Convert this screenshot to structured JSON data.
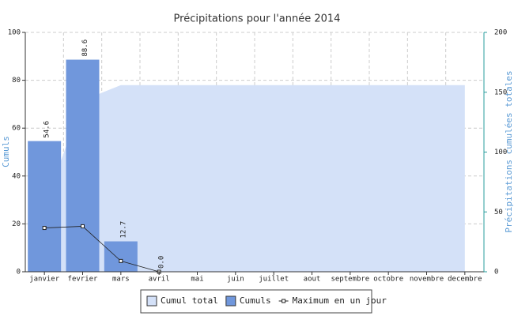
{
  "chart_data": {
    "type": "bar-line-area",
    "title": "Précipitations pour l'année 2014",
    "ylabel": "Cumuls",
    "y2label": "Précipitations cumulées totales",
    "categories": [
      "janvier",
      "fevrier",
      "mars",
      "avril",
      "mai",
      "juin",
      "juillet",
      "aout",
      "septembre",
      "octobre",
      "novembre",
      "decembre"
    ],
    "ylim": [
      0,
      100
    ],
    "yticks": [
      0,
      20,
      40,
      60,
      80,
      100
    ],
    "y2lim": [
      0,
      200
    ],
    "y2ticks": [
      0,
      50,
      100,
      150,
      200
    ],
    "grid": true,
    "series": [
      {
        "name": "Cumul total",
        "kind": "area",
        "axis": "y2",
        "color": "#d4e1f8",
        "values": [
          54.6,
          143.2,
          155.9,
          155.9,
          155.9,
          155.9,
          155.9,
          155.9,
          155.9,
          155.9,
          155.9,
          155.9
        ]
      },
      {
        "name": "Cumuls",
        "kind": "bar",
        "color": "#7097dc",
        "values": [
          54.6,
          88.6,
          12.7,
          0,
          null,
          null,
          null,
          null,
          null,
          null,
          null,
          null
        ],
        "value_labels": [
          "54.6",
          "88.6",
          "12.7",
          "0.0",
          null,
          null,
          null,
          null,
          null,
          null,
          null,
          null
        ]
      },
      {
        "name": "Maximum en un jour",
        "kind": "line",
        "color": "#222222",
        "values": [
          18.3,
          19,
          4.5,
          0,
          null,
          null,
          null,
          null,
          null,
          null,
          null,
          null
        ]
      }
    ]
  }
}
